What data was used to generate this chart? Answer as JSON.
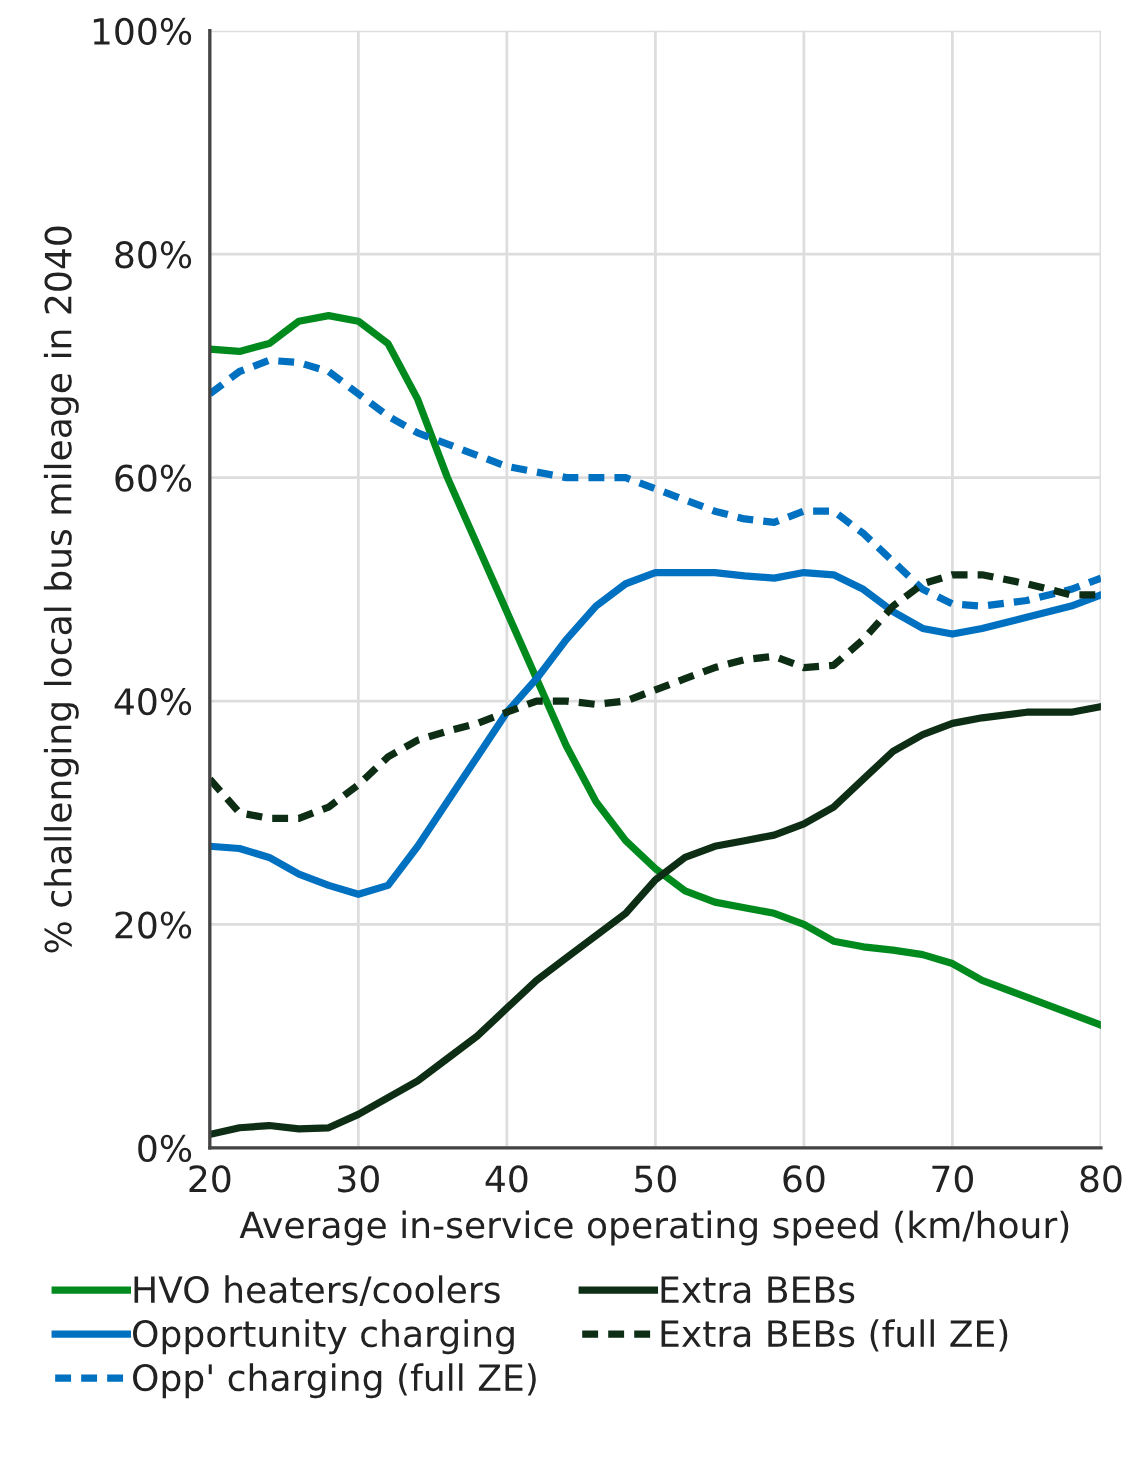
{
  "chart_data": {
    "type": "line",
    "xlabel": "Average in-service operating speed (km/hour)",
    "ylabel": "% challenging local bus mileage in 2040",
    "x": [
      20,
      22,
      24,
      26,
      28,
      30,
      32,
      34,
      36,
      38,
      40,
      42,
      44,
      46,
      48,
      50,
      52,
      54,
      56,
      58,
      60,
      62,
      64,
      66,
      68,
      70,
      72,
      75,
      78,
      80
    ],
    "xlim": [
      20,
      80
    ],
    "xticks": [
      20,
      30,
      40,
      50,
      60,
      70,
      80
    ],
    "ylim": [
      0,
      100
    ],
    "yticks": [
      {
        "value": 0,
        "label": "0%"
      },
      {
        "value": 20,
        "label": "20%"
      },
      {
        "value": 40,
        "label": "40%"
      },
      {
        "value": 60,
        "label": "60%"
      },
      {
        "value": 80,
        "label": "80%"
      },
      {
        "value": 100,
        "label": "100%"
      }
    ],
    "grid": true,
    "legend": "bottom",
    "marker": "none",
    "series": [
      {
        "name": "HVO heaters/coolers",
        "color": "#008a1e",
        "line_style": "solid",
        "values": [
          71.5,
          71.3,
          72,
          74,
          74.5,
          74,
          72,
          67,
          60,
          54,
          48,
          42,
          36,
          31,
          27.5,
          25,
          23,
          22,
          21.5,
          21,
          20,
          18.5,
          18,
          17.7,
          17.3,
          16.5,
          15,
          13.5,
          12,
          11
        ]
      },
      {
        "name": "Opportunity charging",
        "color": "#0070c0",
        "line_style": "solid",
        "values": [
          27,
          26.8,
          26,
          24.5,
          23.5,
          22.7,
          23.5,
          27,
          31,
          35,
          39,
          42,
          45.5,
          48.5,
          50.5,
          51.5,
          51.5,
          51.5,
          51.2,
          51,
          51.5,
          51.3,
          50,
          48,
          46.5,
          46,
          46.5,
          47.5,
          48.5,
          49.5
        ]
      },
      {
        "name": "Opp' charging (full ZE)",
        "color": "#0070c0",
        "line_style": "dashed",
        "values": [
          67.5,
          69.5,
          70.5,
          70.3,
          69.5,
          67.5,
          65.5,
          64,
          63,
          62,
          61,
          60.5,
          60,
          60,
          60,
          59,
          58,
          57,
          56.3,
          56,
          57,
          57,
          55,
          52.5,
          50,
          48.7,
          48.5,
          49,
          50,
          51
        ]
      },
      {
        "name": "Extra BEBs",
        "color": "#0d2e14",
        "line_style": "solid",
        "values": [
          1.2,
          1.8,
          2,
          1.7,
          1.8,
          3,
          4.5,
          6,
          8,
          10,
          12.5,
          15,
          17,
          19,
          21,
          24,
          26,
          27,
          27.5,
          28,
          29,
          30.5,
          33,
          35.5,
          37,
          38,
          38.5,
          39,
          39,
          39.5
        ]
      },
      {
        "name": "Extra BEBs (full ZE)",
        "color": "#0d2e14",
        "line_style": "dashed",
        "values": [
          33,
          30,
          29.5,
          29.5,
          30.5,
          32.5,
          35,
          36.5,
          37.3,
          38,
          39,
          40,
          40,
          39.7,
          40,
          41,
          42,
          43,
          43.7,
          44,
          43,
          43.2,
          45.5,
          48.5,
          50.5,
          51.3,
          51.3,
          50.5,
          49.5,
          49.5
        ]
      }
    ]
  }
}
